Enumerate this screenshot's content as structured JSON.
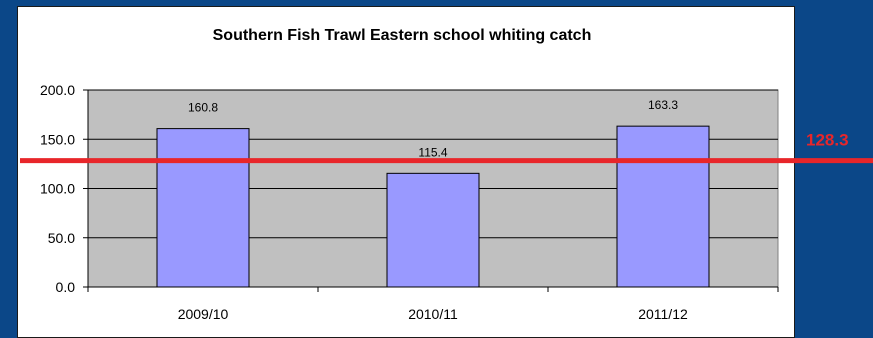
{
  "chart_data": {
    "type": "bar",
    "title": "Southern Fish Trawl Eastern school whiting catch",
    "categories": [
      "2009/10",
      "2010/11",
      "2011/12"
    ],
    "values": [
      160.8,
      115.4,
      163.3
    ],
    "data_labels": [
      "160.8",
      "115.4",
      "163.3"
    ],
    "ylim": [
      0,
      200
    ],
    "yticks": [
      0,
      50,
      100,
      150,
      200
    ],
    "ytick_labels": [
      "0.0",
      "50.0",
      "100.0",
      "150.0",
      "200.0"
    ],
    "grid": true,
    "reference_line": {
      "value": 128.3,
      "label": "128.3"
    },
    "colors": {
      "bar_fill": "#9999ff",
      "plot_bg": "#c0c0c0",
      "reference_line": "#e8262a",
      "slide_bg": "#0b4788"
    }
  }
}
